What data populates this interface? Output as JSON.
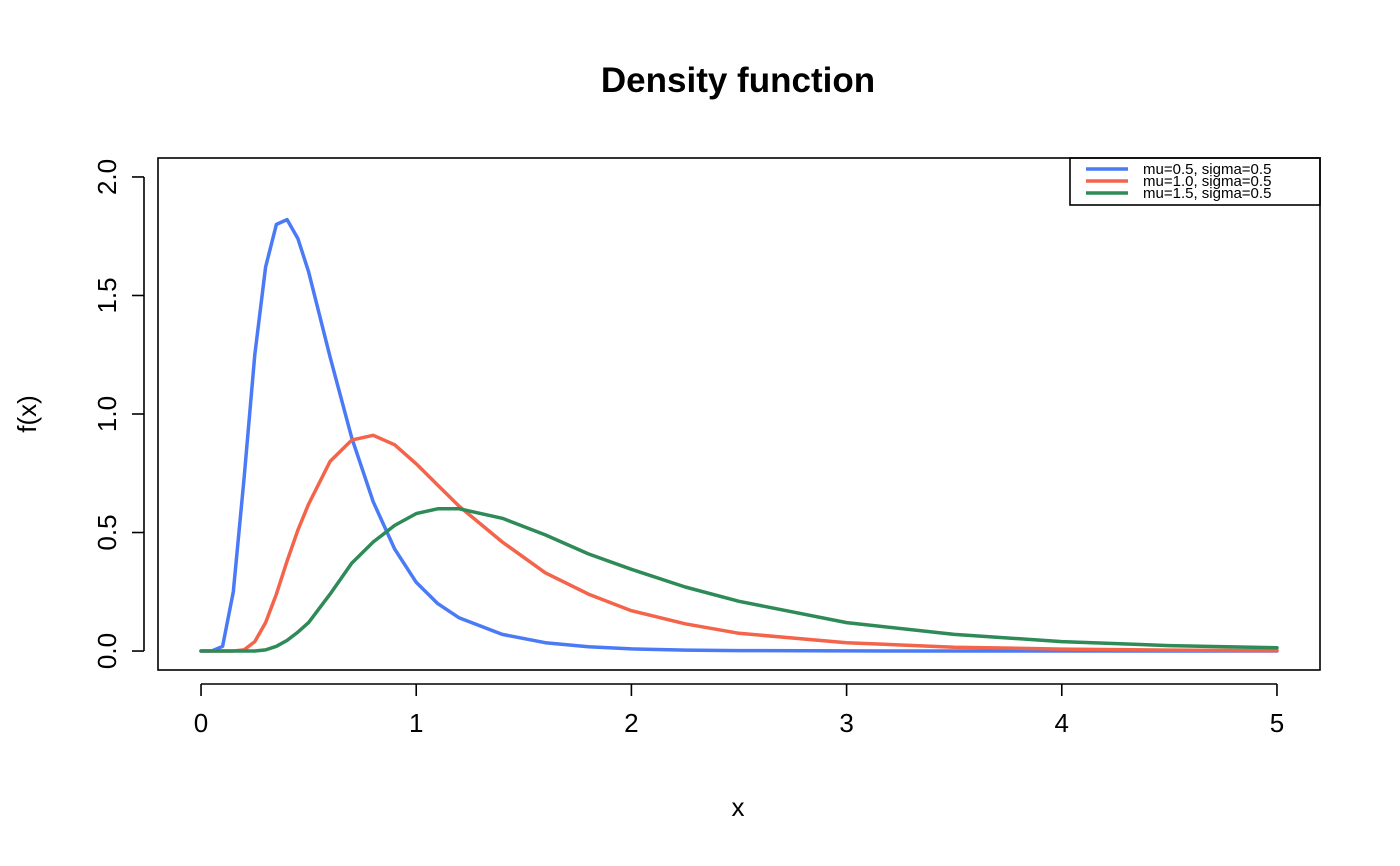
{
  "chart_data": {
    "type": "line",
    "title": "Density function",
    "xlabel": "x",
    "ylabel": "f(x)",
    "xlim": [
      -0.2,
      5.2
    ],
    "ylim": [
      -0.08,
      2.08
    ],
    "xticks": [
      0,
      1,
      2,
      3,
      4,
      5
    ],
    "xtick_labels": [
      "0",
      "1",
      "2",
      "3",
      "4",
      "5"
    ],
    "yticks": [
      0.0,
      0.5,
      1.0,
      1.5,
      2.0
    ],
    "ytick_labels": [
      "0.0",
      "0.5",
      "1.0",
      "1.5",
      "2.0"
    ],
    "grid": false,
    "legend_position": "top-right",
    "x": [
      0,
      0.05,
      0.1,
      0.15,
      0.2,
      0.25,
      0.3,
      0.35,
      0.4,
      0.45,
      0.5,
      0.6,
      0.7,
      0.8,
      0.9,
      1.0,
      1.1,
      1.2,
      1.4,
      1.6,
      1.8,
      2.0,
      2.25,
      2.5,
      3.0,
      3.5,
      4.0,
      4.5,
      5.0
    ],
    "series": [
      {
        "name": "mu=0.5, sigma=0.5",
        "color": "#4A7AF5",
        "values": [
          0,
          0,
          0.02,
          0.25,
          0.73,
          1.25,
          1.62,
          1.8,
          1.82,
          1.74,
          1.6,
          1.24,
          0.9,
          0.63,
          0.43,
          0.29,
          0.2,
          0.14,
          0.07,
          0.035,
          0.018,
          0.009,
          0.004,
          0.002,
          0.0005,
          0,
          0,
          0,
          0
        ]
      },
      {
        "name": "mu=1.0, sigma=0.5",
        "color": "#F4644A",
        "values": [
          0,
          0,
          0,
          0,
          0.005,
          0.04,
          0.12,
          0.24,
          0.38,
          0.51,
          0.62,
          0.8,
          0.89,
          0.91,
          0.87,
          0.79,
          0.7,
          0.61,
          0.46,
          0.33,
          0.24,
          0.17,
          0.115,
          0.075,
          0.035,
          0.016,
          0.008,
          0.004,
          0.002
        ]
      },
      {
        "name": "mu=1.5, sigma=0.5",
        "color": "#2E8B57",
        "values": [
          0,
          0,
          0,
          0,
          0,
          0,
          0.005,
          0.02,
          0.045,
          0.08,
          0.12,
          0.24,
          0.37,
          0.46,
          0.53,
          0.58,
          0.6,
          0.6,
          0.56,
          0.49,
          0.41,
          0.345,
          0.27,
          0.21,
          0.12,
          0.07,
          0.04,
          0.023,
          0.014
        ]
      }
    ]
  }
}
